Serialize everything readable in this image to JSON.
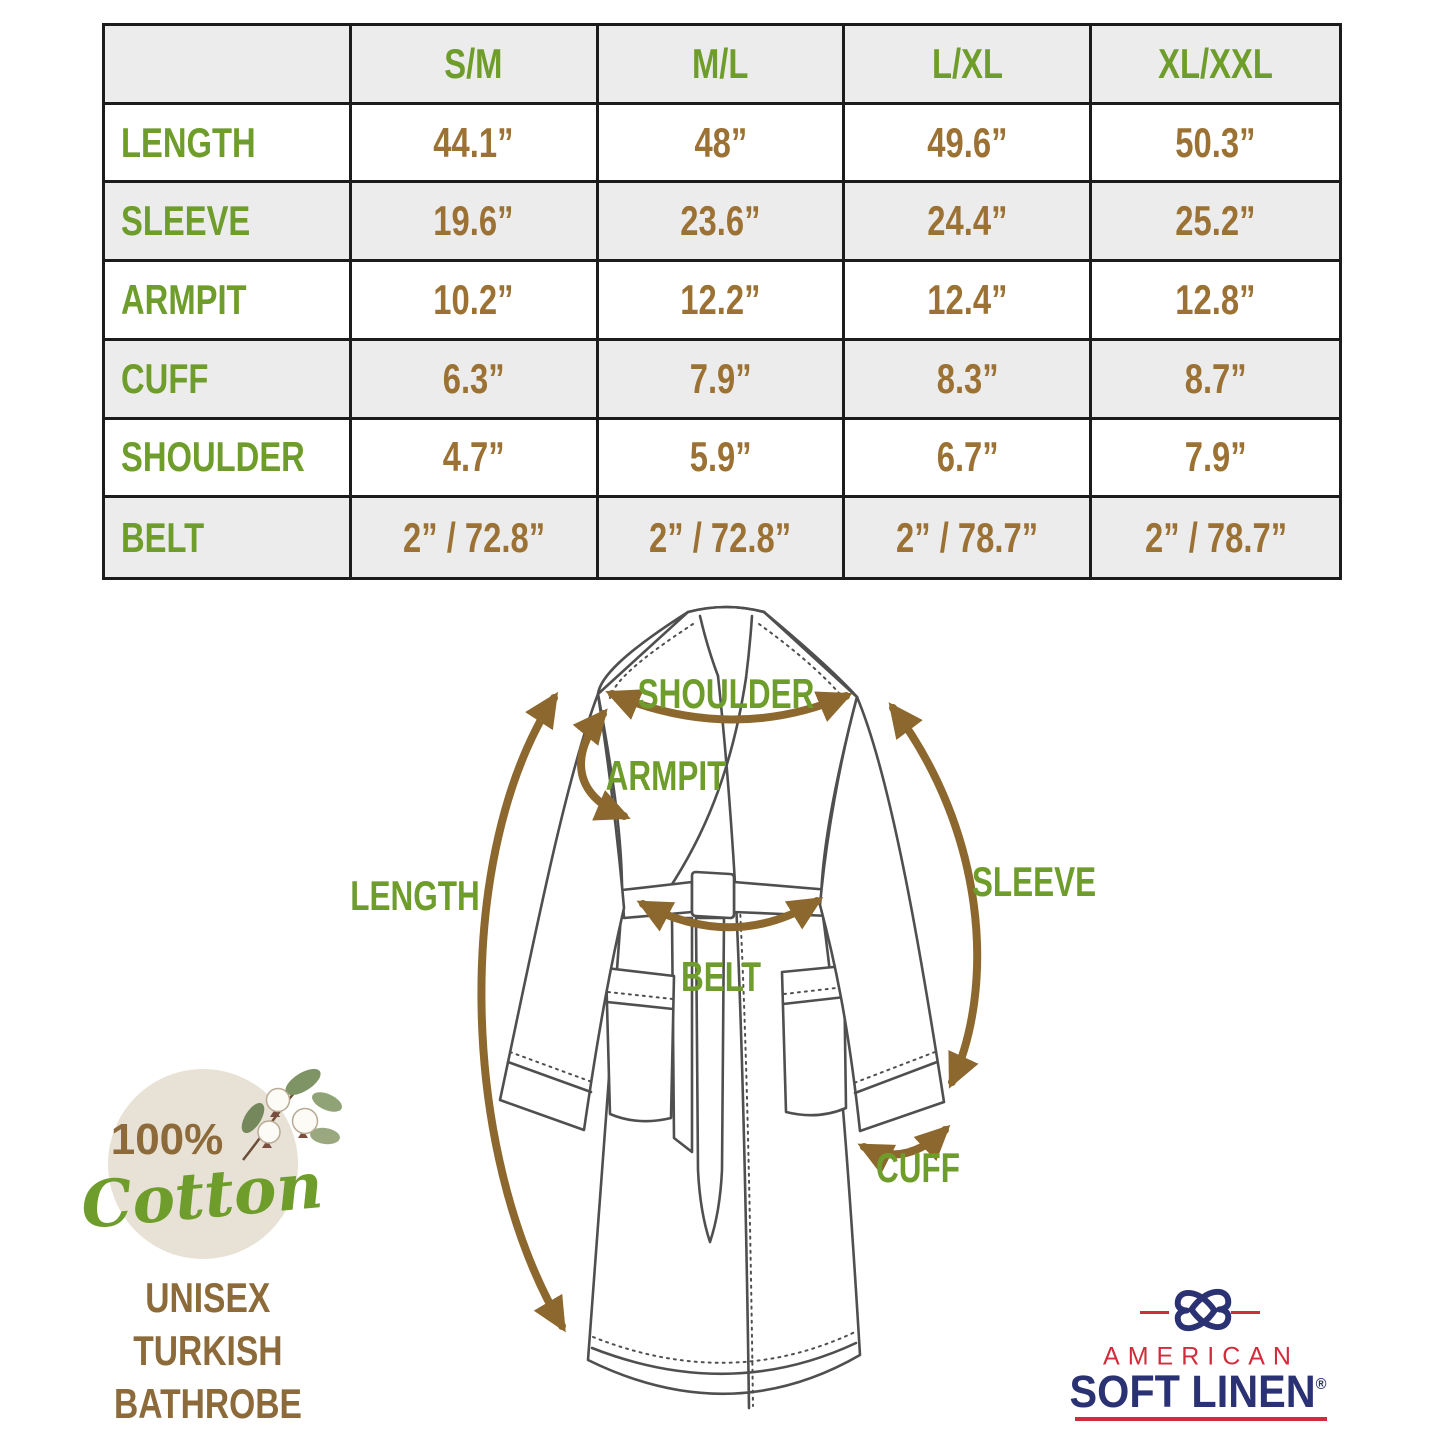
{
  "table": {
    "columns": [
      "S/M",
      "M/L",
      "L/XL",
      "XL/XXL"
    ],
    "rows": [
      {
        "label": "LENGTH",
        "values": [
          "44.1”",
          "48”",
          "49.6”",
          "50.3”"
        ]
      },
      {
        "label": "SLEEVE",
        "values": [
          "19.6”",
          "23.6”",
          "24.4”",
          "25.2”"
        ]
      },
      {
        "label": "ARMPIT",
        "values": [
          "10.2”",
          "12.2”",
          "12.4”",
          "12.8”"
        ]
      },
      {
        "label": "CUFF",
        "values": [
          "6.3”",
          "7.9”",
          "8.3”",
          "8.7”"
        ]
      },
      {
        "label": "SHOULDER",
        "values": [
          "4.7”",
          "5.9”",
          "6.7”",
          "7.9”"
        ]
      },
      {
        "label": "BELT",
        "values": [
          "2” / 72.8”",
          "2” / 72.8”",
          "2” / 78.7”",
          "2” / 78.7”"
        ]
      }
    ]
  },
  "diagram": {
    "labels": {
      "shoulder": "SHOULDER",
      "armpit": "ARMPIT",
      "length": "LENGTH",
      "sleeve": "SLEEVE",
      "belt": "BELT",
      "cuff": "CUFF"
    }
  },
  "badge": {
    "percent": "100%",
    "cotton": "Cotton"
  },
  "product": {
    "lines": [
      "UNISEX",
      "TURKISH",
      "BATHROBE"
    ]
  },
  "logo": {
    "american": "AMERICAN",
    "brand": "SOFT LINEN",
    "registered": "®"
  },
  "colors": {
    "green": "#6f9d2c",
    "brown_value": "#9c7134",
    "brown_text": "#8c6a39",
    "arrow_brown": "#8d682e",
    "line_gray": "#4f4f4f",
    "navy": "#2b3274",
    "red": "#d22c3c",
    "beige": "#e7e2d5",
    "row_gray": "#ececec",
    "border_dark": "#1c1c1c"
  }
}
